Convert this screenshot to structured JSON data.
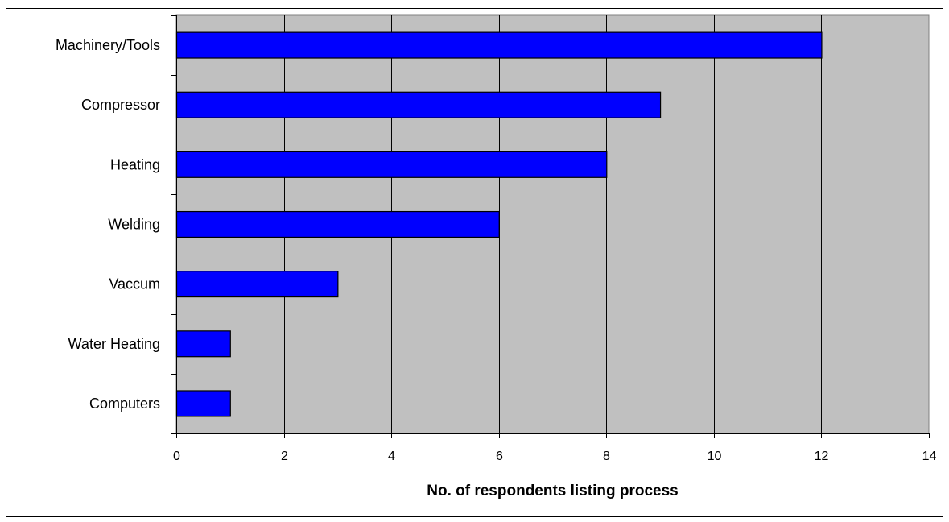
{
  "chart_data": {
    "type": "bar",
    "orientation": "horizontal",
    "title": "",
    "xlabel": "No. of respondents listing process",
    "ylabel": "",
    "categories": [
      "Machinery/Tools",
      "Compressor",
      "Heating",
      "Welding",
      "Vaccum",
      "Water Heating",
      "Computers"
    ],
    "values": [
      12,
      9,
      8,
      6,
      3,
      1,
      1
    ],
    "xlim": [
      0,
      14
    ],
    "xticks": [
      0,
      2,
      4,
      6,
      8,
      10,
      12,
      14
    ],
    "grid": true,
    "legend": "none",
    "colors": {
      "bar": "#0000ff",
      "plot_background": "#c0c0c0",
      "gridline": "#000000"
    }
  }
}
